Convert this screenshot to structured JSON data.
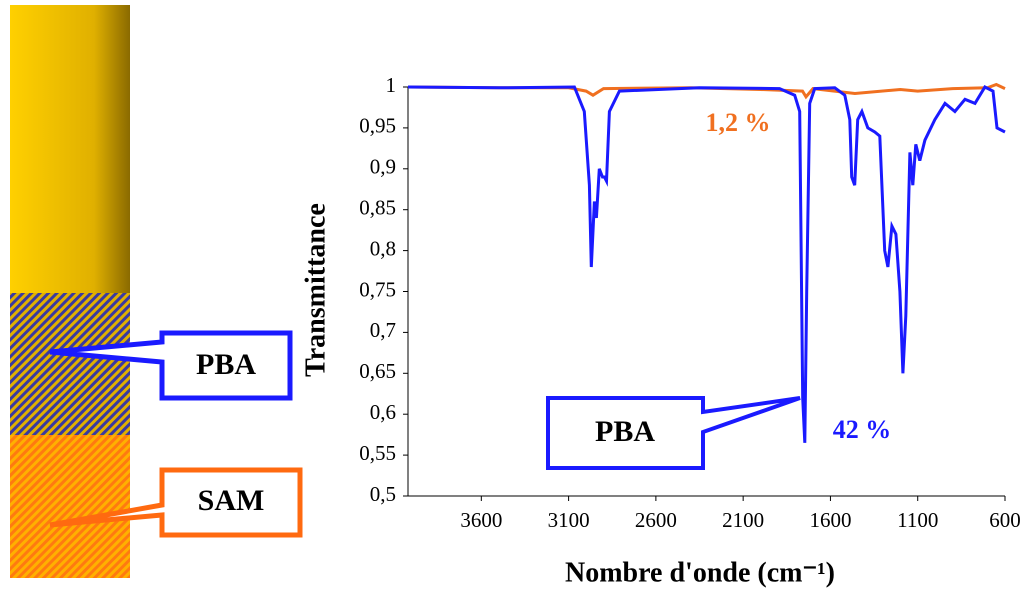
{
  "diagram": {
    "labels": [
      "PBA",
      "SAM"
    ]
  },
  "chart_data": {
    "type": "line",
    "y_label": "Transmittance",
    "x_label": "Nombre d'onde (cm⁻¹)",
    "annotations": [
      "1,2 %",
      "42 %",
      "PBA"
    ],
    "xlim": [
      4020,
      600
    ],
    "ylim": [
      0.5,
      1
    ],
    "xticks": [
      3600,
      3100,
      2600,
      2100,
      1600,
      1100,
      600
    ],
    "yticks": [
      {
        "value": 0.5,
        "label": "0,5"
      },
      {
        "value": 0.55,
        "label": "0,55"
      },
      {
        "value": 0.6,
        "label": "0,6"
      },
      {
        "value": 0.65,
        "label": "0,65"
      },
      {
        "value": 0.7,
        "label": "0,7"
      },
      {
        "value": 0.75,
        "label": "0,75"
      },
      {
        "value": 0.8,
        "label": "0,8"
      },
      {
        "value": 0.85,
        "label": "0,85"
      },
      {
        "value": 0.9,
        "label": "0,9"
      },
      {
        "value": 0.95,
        "label": "0,95"
      },
      1
    ],
    "series": [
      {
        "color": "#f07020",
        "x": [
          4020,
          3500,
          3100,
          3000,
          2960,
          2900,
          2400,
          2000,
          1760,
          1740,
          1700,
          1460,
          1200,
          1100,
          900,
          700,
          650,
          600
        ],
        "values": [
          1.0,
          0.999,
          0.999,
          0.995,
          0.99,
          0.998,
          0.999,
          0.997,
          0.995,
          0.988,
          0.998,
          0.992,
          0.997,
          0.995,
          0.998,
          0.999,
          1.003,
          0.998
        ]
      },
      {
        "color": "#1a1aff",
        "x": [
          4020,
          3500,
          3067,
          3010,
          2981,
          2970,
          2952,
          2941,
          2924,
          2906,
          2895,
          2883,
          2866,
          2809,
          2350,
          1891,
          1805,
          1776,
          1759,
          1747,
          1736,
          1719,
          1690,
          1575,
          1518,
          1489,
          1478,
          1461,
          1444,
          1420,
          1386,
          1346,
          1317,
          1289,
          1271,
          1248,
          1225,
          1202,
          1185,
          1168,
          1145,
          1128,
          1111,
          1088,
          1059,
          1002,
          944,
          887,
          829,
          772,
          715,
          669,
          646,
          600
        ],
        "values": [
          1.0,
          0.999,
          1.0,
          0.97,
          0.88,
          0.78,
          0.86,
          0.84,
          0.9,
          0.89,
          0.89,
          0.885,
          0.97,
          0.995,
          0.999,
          0.998,
          0.99,
          0.97,
          0.62,
          0.565,
          0.75,
          0.98,
          0.998,
          0.999,
          0.99,
          0.96,
          0.89,
          0.88,
          0.96,
          0.97,
          0.95,
          0.945,
          0.94,
          0.8,
          0.78,
          0.83,
          0.82,
          0.75,
          0.65,
          0.72,
          0.92,
          0.88,
          0.93,
          0.91,
          0.935,
          0.96,
          0.98,
          0.97,
          0.985,
          0.98,
          1.0,
          0.995,
          0.95,
          0.945
        ]
      }
    ]
  }
}
